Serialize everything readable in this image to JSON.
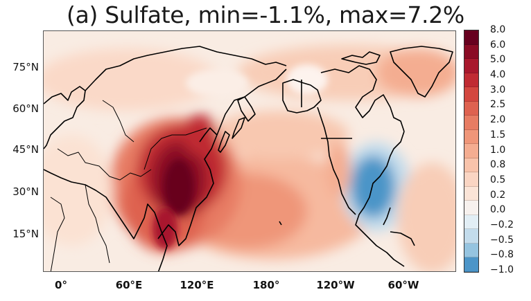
{
  "title": "(a) Sulfate, min=-1.1%, max=7.2%",
  "map": {
    "variable": "Sulfate",
    "min_value": -1.1,
    "max_value": 7.2,
    "unit": "%",
    "projection": "cylindrical-equidistant"
  },
  "lat_labels": [
    "75°N",
    "60°N",
    "45°N",
    "30°N",
    "15°N"
  ],
  "lon_labels": [
    "0°",
    "60°E",
    "120°E",
    "180°",
    "120°W",
    "60°W"
  ],
  "colorbar": {
    "labels": [
      "8.0",
      "6.0",
      "5.0",
      "4.0",
      "3.0",
      "2.5",
      "2.0",
      "1.5",
      "1.0",
      "0.8",
      "0.5",
      "0.2",
      "0.0",
      "−0.2",
      "−0.5",
      "−0.8",
      "−1.0"
    ],
    "colors": [
      "#67001f",
      "#8a0b25",
      "#a8182d",
      "#c02b33",
      "#d3473f",
      "#de6250",
      "#e77c63",
      "#ef9679",
      "#f4ad91",
      "#f8c3ab",
      "#fad5c3",
      "#fbe4d7",
      "#f7f1ee",
      "#e2eef5",
      "#c3dcec",
      "#95c4e0",
      "#4c95c8"
    ]
  },
  "map_colors": {
    "background": "#f8f0ea",
    "light_warm": "#fbe2d3",
    "warm": "#f4ad91",
    "medium": "#e77c63",
    "strong": "#c02b33",
    "extreme": "#67001f",
    "cool": "#95c4e0",
    "deep_cool": "#4c95c8",
    "coast": "#000000"
  }
}
